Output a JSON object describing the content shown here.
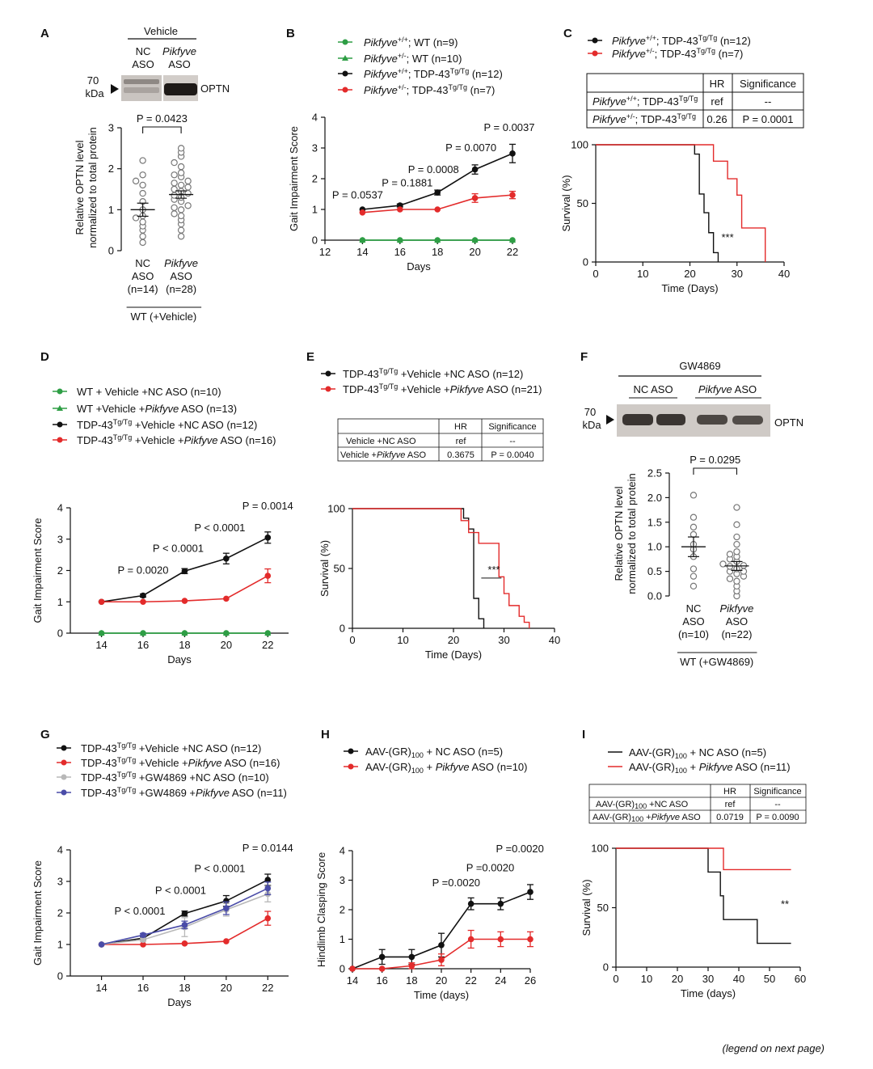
{
  "panels": {
    "A": {
      "letter": "A",
      "blot_title": "Vehicle",
      "lane_labels": [
        [
          "NC",
          "ASO"
        ],
        [
          "Pikfyve",
          "ASO"
        ]
      ],
      "kda": [
        "70",
        "kDa"
      ],
      "band_label": "OPTN"
    },
    "B": {
      "letter": "B"
    },
    "C": {
      "letter": "C",
      "legend": [
        {
          "g": "Pikfyve",
          "sup": "+/+",
          "r": "; TDP-43",
          "sup2": "Tg/Tg",
          "n": " (n=12)",
          "color": "#111111"
        },
        {
          "g": "Pikfyve",
          "sup": "+/-",
          "r": "; TDP-43",
          "sup2": "Tg/Tg",
          "n": " (n=7)",
          "color": "#e32b2b"
        }
      ],
      "table": {
        "headers": [
          "",
          "HR",
          "Significance"
        ],
        "rows": [
          [
            "Pikfyve+/+; TDP-43Tg/Tg",
            "ref",
            "--"
          ],
          [
            "Pikfyve+/-; TDP-43Tg/Tg",
            "0.26",
            "P = 0.0001"
          ]
        ]
      }
    },
    "D": {
      "letter": "D"
    },
    "E": {
      "letter": "E",
      "legend": [
        {
          "t": "TDP-43",
          "sup": "Tg/Tg",
          "r": " +Vehicle +NC ASO (n=12)",
          "color": "#111111"
        },
        {
          "t": "TDP-43",
          "sup": "Tg/Tg",
          "r": " +Vehicle +",
          "it": "Pikfyve",
          "r2": " ASO (n=21)",
          "color": "#e32b2b"
        }
      ],
      "table": {
        "headers": [
          "",
          "HR",
          "Significance"
        ],
        "rows": [
          [
            "Vehicle +NC ASO",
            "ref",
            "--"
          ],
          [
            "Vehicle +Pikfyve ASO",
            "0.3675",
            "P = 0.0040"
          ]
        ]
      }
    },
    "F": {
      "letter": "F",
      "blot_title": "GW4869",
      "lane_labels": [
        "NC ASO",
        "Pikfyve ASO"
      ],
      "kda": [
        "70",
        "kDa"
      ],
      "band_label": "OPTN"
    },
    "G": {
      "letter": "G"
    },
    "H": {
      "letter": "H"
    },
    "I": {
      "letter": "I",
      "table": {
        "headers": [
          "",
          "HR",
          "Significance"
        ],
        "rows": [
          [
            "AAV-(GR)100 +NC ASO",
            "ref",
            "--"
          ],
          [
            "AAV-(GR)100 +Pikfyve ASO",
            "0.0719",
            "P = 0.0090"
          ]
        ]
      }
    }
  },
  "footer": "(legend on next page)",
  "chart_data": [
    {
      "id": "A",
      "type": "scatter",
      "ylabel": "Relative OPTN level normalized to total protein",
      "categories": [
        "NC ASO (n=14)",
        "Pikfyve ASO (n=28)"
      ],
      "group_label": "WT (+Vehicle)",
      "ylim": [
        0,
        3
      ],
      "yticks": [
        0,
        1,
        2,
        3
      ],
      "means": [
        1.0,
        1.37
      ],
      "sem": [
        0.16,
        0.09
      ],
      "pvalue": "P = 0.0423",
      "points": [
        [
          0.2,
          0.35,
          0.5,
          0.6,
          0.7,
          0.8,
          0.85,
          1.0,
          1.2,
          1.4,
          1.6,
          1.7,
          1.85,
          2.2
        ],
        [
          0.35,
          0.5,
          0.65,
          0.75,
          0.85,
          0.9,
          1.0,
          1.05,
          1.1,
          1.2,
          1.25,
          1.3,
          1.35,
          1.4,
          1.45,
          1.5,
          1.55,
          1.6,
          1.65,
          1.7,
          1.8,
          1.85,
          1.9,
          2.05,
          2.15,
          2.3,
          2.4,
          2.5
        ]
      ]
    },
    {
      "id": "B",
      "type": "line",
      "xlabel": "Days",
      "ylabel": "Gait Impairment Score",
      "xlim": [
        12,
        22
      ],
      "ylim": [
        0,
        4
      ],
      "xticks": [
        12,
        14,
        16,
        18,
        20,
        22
      ],
      "yticks": [
        0,
        1,
        2,
        3,
        4
      ],
      "x": [
        14,
        16,
        18,
        20,
        22
      ],
      "series": [
        {
          "name": "Pikfyve+/+; WT (n=9)",
          "color": "#2e9e45",
          "marker": "circle",
          "values": [
            0,
            0,
            0,
            0,
            0
          ],
          "err": [
            0,
            0,
            0,
            0,
            0
          ]
        },
        {
          "name": "Pikfyve+/-; WT (n=10)",
          "color": "#2e9e45",
          "marker": "triangle",
          "values": [
            0,
            0,
            0,
            0,
            0
          ],
          "err": [
            0,
            0,
            0,
            0,
            0
          ]
        },
        {
          "name": "Pikfyve+/+; TDP-43Tg/Tg (n=12)",
          "color": "#111111",
          "marker": "circle",
          "values": [
            1.0,
            1.13,
            1.55,
            2.3,
            2.82
          ],
          "err": [
            0,
            0.05,
            0.08,
            0.15,
            0.3
          ]
        },
        {
          "name": "Pikfyve+/-; TDP-43Tg/Tg (n=7)",
          "color": "#e32b2b",
          "marker": "circle",
          "values": [
            0.9,
            1.0,
            1.0,
            1.37,
            1.47
          ],
          "err": [
            0,
            0,
            0,
            0.14,
            0.12
          ]
        }
      ],
      "annotations": [
        "P = 0.0537",
        "P = 0.1881",
        "P = 0.0008",
        "P = 0.0070",
        "P = 0.0037"
      ]
    },
    {
      "id": "C",
      "type": "line",
      "xlabel": "Time (Days)",
      "ylabel": "Survival (%)",
      "xlim": [
        0,
        40
      ],
      "ylim": [
        0,
        100
      ],
      "xticks": [
        0,
        10,
        20,
        30,
        40
      ],
      "yticks": [
        0,
        50,
        100
      ],
      "series": [
        {
          "name": "Pikfyve+/+; TDP-43Tg/Tg (n=12)",
          "color": "#111111",
          "steps": [
            [
              0,
              100
            ],
            [
              21,
              100
            ],
            [
              21,
              92
            ],
            [
              22,
              92
            ],
            [
              22,
              58
            ],
            [
              23,
              58
            ],
            [
              23,
              42
            ],
            [
              24,
              42
            ],
            [
              24,
              25
            ],
            [
              25,
              25
            ],
            [
              25,
              8
            ],
            [
              26,
              8
            ],
            [
              26,
              0
            ]
          ]
        },
        {
          "name": "Pikfyve+/-; TDP-43Tg/Tg (n=7)",
          "color": "#e32b2b",
          "steps": [
            [
              0,
              100
            ],
            [
              25,
              100
            ],
            [
              25,
              86
            ],
            [
              28,
              86
            ],
            [
              28,
              71
            ],
            [
              30,
              71
            ],
            [
              30,
              57
            ],
            [
              31,
              57
            ],
            [
              31,
              29
            ],
            [
              36,
              29
            ],
            [
              36,
              0
            ]
          ]
        }
      ],
      "annotation": "***"
    },
    {
      "id": "D",
      "type": "line",
      "xlabel": "Days",
      "ylabel": "Gait Impairment Score",
      "xlim": [
        12.5,
        23
      ],
      "ylim": [
        0,
        4
      ],
      "xticks": [
        14,
        16,
        18,
        20,
        22
      ],
      "yticks": [
        0,
        1,
        2,
        3,
        4
      ],
      "x": [
        14,
        16,
        18,
        20,
        22
      ],
      "series": [
        {
          "name": "WT + Vehicle +NC ASO (n=10)",
          "color": "#2e9e45",
          "marker": "circle",
          "values": [
            0,
            0,
            0,
            0,
            0
          ],
          "err": [
            0,
            0,
            0,
            0,
            0
          ]
        },
        {
          "name": "WT +Vehicle +Pikfyve ASO (n=13)",
          "color": "#2e9e45",
          "marker": "triangle",
          "values": [
            0,
            0,
            0,
            0,
            0
          ],
          "err": [
            0,
            0,
            0,
            0,
            0
          ]
        },
        {
          "name": "TDP-43Tg/Tg +Vehicle +NC ASO (n=12)",
          "color": "#111111",
          "marker": "circle",
          "values": [
            1.0,
            1.2,
            1.98,
            2.38,
            3.05
          ],
          "err": [
            0,
            0.05,
            0.08,
            0.17,
            0.18
          ]
        },
        {
          "name": "TDP-43Tg/Tg +Vehicle +Pikfyve ASO (n=16)",
          "color": "#e32b2b",
          "marker": "circle",
          "values": [
            1.0,
            1.0,
            1.03,
            1.1,
            1.83
          ],
          "err": [
            0,
            0,
            0,
            0,
            0.22
          ]
        }
      ],
      "annotations": [
        "P = 0.0020",
        "P < 0.0001",
        "P < 0.0001",
        "P = 0.0014"
      ]
    },
    {
      "id": "E",
      "type": "line",
      "xlabel": "Time (Days)",
      "ylabel": "Survival (%)",
      "xlim": [
        0,
        40
      ],
      "ylim": [
        0,
        100
      ],
      "xticks": [
        0,
        10,
        20,
        30,
        40
      ],
      "yticks": [
        0,
        50,
        100
      ],
      "series": [
        {
          "name": "TDP-43Tg/Tg +Vehicle +NC ASO (n=12)",
          "color": "#111111",
          "steps": [
            [
              0,
              100
            ],
            [
              22,
              100
            ],
            [
              22,
              92
            ],
            [
              23,
              92
            ],
            [
              23,
              83
            ],
            [
              24,
              83
            ],
            [
              24,
              25
            ],
            [
              25,
              25
            ],
            [
              25,
              8
            ],
            [
              26,
              8
            ],
            [
              26,
              0
            ]
          ]
        },
        {
          "name": "TDP-43Tg/Tg +Vehicle +Pikfyve ASO (n=21)",
          "color": "#e32b2b",
          "steps": [
            [
              0,
              100
            ],
            [
              21.5,
              100
            ],
            [
              21.5,
              90
            ],
            [
              23,
              90
            ],
            [
              23,
              80
            ],
            [
              25,
              80
            ],
            [
              25,
              71
            ],
            [
              29,
              71
            ],
            [
              29,
              43
            ],
            [
              30,
              43
            ],
            [
              30,
              29
            ],
            [
              31,
              29
            ],
            [
              31,
              19
            ],
            [
              33,
              19
            ],
            [
              33,
              10
            ],
            [
              34,
              10
            ],
            [
              34,
              5
            ],
            [
              35,
              5
            ],
            [
              35,
              0
            ]
          ]
        }
      ],
      "annotation": "***"
    },
    {
      "id": "F",
      "type": "scatter",
      "ylabel": "Relative OPTN level normalized to total protein",
      "categories": [
        "NC ASO (n=10)",
        "Pikfyve ASO (n=22)"
      ],
      "group_label": "WT (+GW4869)",
      "ylim": [
        0,
        2.5
      ],
      "yticks": [
        0.0,
        0.5,
        1.0,
        1.5,
        2.0,
        2.5
      ],
      "means": [
        1.0,
        0.61
      ],
      "sem": [
        0.2,
        0.09
      ],
      "pvalue": "P = 0.0295",
      "points": [
        [
          0.2,
          0.4,
          0.55,
          0.8,
          0.95,
          1.05,
          1.25,
          1.4,
          1.6,
          2.05
        ],
        [
          0.0,
          0.1,
          0.2,
          0.3,
          0.35,
          0.4,
          0.45,
          0.5,
          0.5,
          0.55,
          0.6,
          0.62,
          0.65,
          0.7,
          0.75,
          0.8,
          0.85,
          0.9,
          1.05,
          1.2,
          1.45,
          1.8
        ]
      ]
    },
    {
      "id": "G",
      "type": "line",
      "xlabel": "Days",
      "ylabel": "Gait Impairment Score",
      "xlim": [
        12.5,
        23
      ],
      "ylim": [
        0,
        4
      ],
      "xticks": [
        14,
        16,
        18,
        20,
        22
      ],
      "yticks": [
        0,
        1,
        2,
        3,
        4
      ],
      "x": [
        14,
        16,
        18,
        20,
        22
      ],
      "series": [
        {
          "name": "TDP-43Tg/Tg +Vehicle +NC ASO (n=12)",
          "color": "#111111",
          "marker": "circle",
          "values": [
            1.0,
            1.2,
            1.98,
            2.38,
            3.05
          ],
          "err": [
            0,
            0.05,
            0.08,
            0.17,
            0.18
          ]
        },
        {
          "name": "TDP-43Tg/Tg +Vehicle +Pikfyve ASO (n=16)",
          "color": "#e32b2b",
          "marker": "circle",
          "values": [
            1.0,
            1.0,
            1.03,
            1.1,
            1.83
          ],
          "err": [
            0,
            0,
            0,
            0,
            0.22
          ]
        },
        {
          "name": "TDP-43Tg/Tg +GW4869 +NC ASO (n=10)",
          "color": "#b8b8b8",
          "marker": "circle",
          "values": [
            1.0,
            1.15,
            1.55,
            2.1,
            2.6
          ],
          "err": [
            0,
            0.05,
            0.3,
            0.2,
            0.25
          ]
        },
        {
          "name": "TDP-43Tg/Tg +GW4869 +Pikfyve ASO (n=11)",
          "color": "#4a4ca8",
          "marker": "circle",
          "values": [
            1.0,
            1.3,
            1.62,
            2.15,
            2.78
          ],
          "err": [
            0,
            0.05,
            0.12,
            0.2,
            0.2
          ]
        }
      ],
      "annotations": [
        "P < 0.0001",
        "P < 0.0001",
        "P < 0.0001",
        "P = 0.0144"
      ]
    },
    {
      "id": "H",
      "type": "line",
      "xlabel": "Time (days)",
      "ylabel": "Hindlimb Clasping Score",
      "xlim": [
        14,
        26
      ],
      "ylim": [
        0,
        4
      ],
      "xticks": [
        14,
        16,
        18,
        20,
        22,
        24,
        26
      ],
      "yticks": [
        0,
        1,
        2,
        3,
        4
      ],
      "x": [
        14,
        16,
        18,
        20,
        22,
        24,
        26
      ],
      "series": [
        {
          "name": "AAV-(GR)100 + NC ASO (n=5)",
          "color": "#111111",
          "marker": "circle",
          "values": [
            0,
            0.4,
            0.4,
            0.8,
            2.2,
            2.2,
            2.6
          ],
          "err": [
            0,
            0.25,
            0.25,
            0.4,
            0.2,
            0.2,
            0.25
          ]
        },
        {
          "name": "AAV-(GR)100 + Pikfyve ASO (n=10)",
          "color": "#e32b2b",
          "marker": "circle",
          "values": [
            0,
            0,
            0.1,
            0.3,
            1.0,
            1.0,
            1.0
          ],
          "err": [
            0,
            0,
            0.1,
            0.2,
            0.3,
            0.25,
            0.25
          ]
        }
      ],
      "annotations": [
        "P =0.0020",
        "P =0.0020",
        "P =0.0020"
      ]
    },
    {
      "id": "I",
      "type": "line",
      "xlabel": "Time (days)",
      "ylabel": "Survival (%)",
      "xlim": [
        0,
        60
      ],
      "ylim": [
        0,
        100
      ],
      "xticks": [
        0,
        10,
        20,
        30,
        40,
        50,
        60
      ],
      "yticks": [
        0,
        50,
        100
      ],
      "series": [
        {
          "name": "AAV-(GR)100 + NC ASO (n=5)",
          "color": "#111111",
          "steps": [
            [
              0,
              100
            ],
            [
              30,
              100
            ],
            [
              30,
              80
            ],
            [
              34,
              80
            ],
            [
              34,
              60
            ],
            [
              35,
              60
            ],
            [
              35,
              40
            ],
            [
              46,
              40
            ],
            [
              46,
              20
            ],
            [
              57,
              20
            ]
          ]
        },
        {
          "name": "AAV-(GR)100 + Pikfyve ASO (n=11)",
          "color": "#e32b2b",
          "steps": [
            [
              0,
              100
            ],
            [
              35,
              100
            ],
            [
              35,
              82
            ],
            [
              57,
              82
            ]
          ]
        }
      ],
      "annotation": "**"
    }
  ]
}
